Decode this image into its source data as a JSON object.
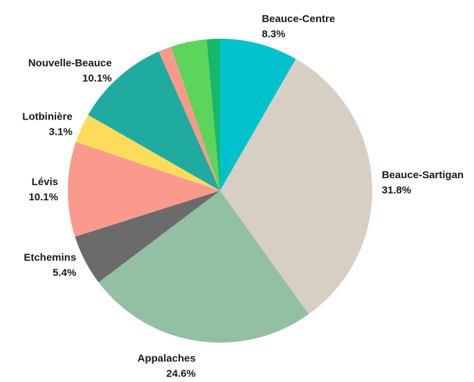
{
  "chart_data": {
    "type": "pie",
    "categories": [
      "Beauce-Centre",
      "Beauce-Sartigan",
      "Appalaches",
      "Etchemins",
      "Lévis",
      "Lotbinière",
      "Nouvelle-Beauce",
      null,
      null,
      null
    ],
    "values": [
      8.3,
      31.8,
      24.6,
      5.4,
      10.1,
      3.1,
      10.1,
      1.4,
      3.8,
      1.4
    ],
    "value_labels": [
      "8.3%",
      "31.8%",
      "24.6%",
      "5.4%",
      "10.1%",
      "3.1%",
      "10.1%",
      null,
      null,
      null
    ],
    "colors": [
      "#00c2cc",
      "#d8cfc4",
      "#93bfa3",
      "#6b6b6b",
      "#fa9a8c",
      "#fddc5c",
      "#20aba0",
      "#f79a8a",
      "#5dd45a",
      "#15b86a"
    ]
  }
}
